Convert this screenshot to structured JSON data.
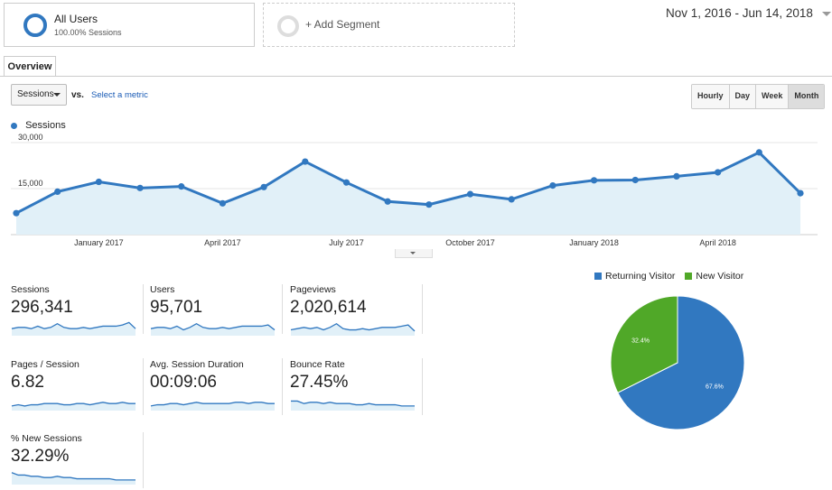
{
  "segments": {
    "active_name": "All Users",
    "active_sub": "100.00% Sessions",
    "add_label": "+ Add Segment"
  },
  "date_range": "Nov 1, 2016 - Jun 14, 2018",
  "tabs": [
    {
      "label": "Overview"
    }
  ],
  "metric_select": {
    "value": "Sessions",
    "vs": "vs.",
    "select_metric": "Select a metric"
  },
  "granularity": [
    {
      "label": "Hourly"
    },
    {
      "label": "Day"
    },
    {
      "label": "Week"
    },
    {
      "label": "Month",
      "active": true
    }
  ],
  "chart_data": {
    "type": "line",
    "series": [
      {
        "name": "Sessions",
        "color": "#3178c0",
        "values": [
          7000,
          14000,
          17200,
          15200,
          15700,
          10200,
          15500,
          23800,
          17000,
          10800,
          9800,
          13200,
          11500,
          16000,
          17700,
          17800,
          19000,
          20300,
          26800,
          13500
        ]
      }
    ],
    "y_ticks": [
      "30,000",
      "15,000"
    ],
    "ylim": [
      0,
      30000
    ],
    "x_ticks": [
      {
        "label": "January 2017",
        "index": 2
      },
      {
        "label": "April 2017",
        "index": 5
      },
      {
        "label": "July 2017",
        "index": 8
      },
      {
        "label": "October 2017",
        "index": 11
      },
      {
        "label": "January 2018",
        "index": 14
      },
      {
        "label": "April 2018",
        "index": 17
      }
    ]
  },
  "metrics": [
    {
      "label": "Sessions",
      "value": "296,341",
      "spark": [
        5,
        6,
        6,
        5,
        7,
        5,
        6,
        9,
        6,
        5,
        5,
        6,
        5,
        6,
        7,
        7,
        7,
        8,
        10,
        5
      ]
    },
    {
      "label": "Users",
      "value": "95,701",
      "spark": [
        5,
        6,
        6,
        5,
        7,
        4,
        6,
        9,
        6,
        5,
        5,
        6,
        5,
        6,
        7,
        7,
        7,
        7,
        8,
        4
      ]
    },
    {
      "label": "Pageviews",
      "value": "2,020,614",
      "spark": [
        4,
        5,
        6,
        5,
        6,
        4,
        6,
        9,
        5,
        4,
        4,
        5,
        4,
        5,
        6,
        6,
        6,
        7,
        8,
        3
      ]
    },
    {
      "label": "Pages / Session",
      "value": "6.82",
      "spark": [
        3,
        4,
        3,
        4,
        4,
        5,
        5,
        5,
        4,
        4,
        5,
        5,
        4,
        5,
        6,
        5,
        5,
        6,
        5,
        5
      ]
    },
    {
      "label": "Avg. Session Duration",
      "value": "00:09:06",
      "spark": [
        3,
        4,
        4,
        5,
        5,
        4,
        5,
        6,
        5,
        5,
        5,
        5,
        5,
        6,
        6,
        5,
        6,
        6,
        5,
        5
      ]
    },
    {
      "label": "Bounce Rate",
      "value": "27.45%",
      "spark": [
        7,
        7,
        5,
        6,
        6,
        5,
        6,
        5,
        5,
        5,
        4,
        4,
        5,
        4,
        4,
        4,
        4,
        3,
        3,
        3
      ]
    },
    {
      "label": "% New Sessions",
      "value": "32.29%",
      "spark": [
        9,
        7,
        7,
        6,
        6,
        5,
        5,
        6,
        5,
        5,
        4,
        4,
        4,
        4,
        4,
        4,
        3,
        3,
        3,
        3
      ]
    }
  ],
  "pie": {
    "type": "pie",
    "slices": [
      {
        "name": "Returning Visitor",
        "value": 67.6,
        "label": "67.6%",
        "color": "#3178c0"
      },
      {
        "name": "New Visitor",
        "value": 32.4,
        "label": "32.4%",
        "color": "#50a828"
      }
    ]
  }
}
